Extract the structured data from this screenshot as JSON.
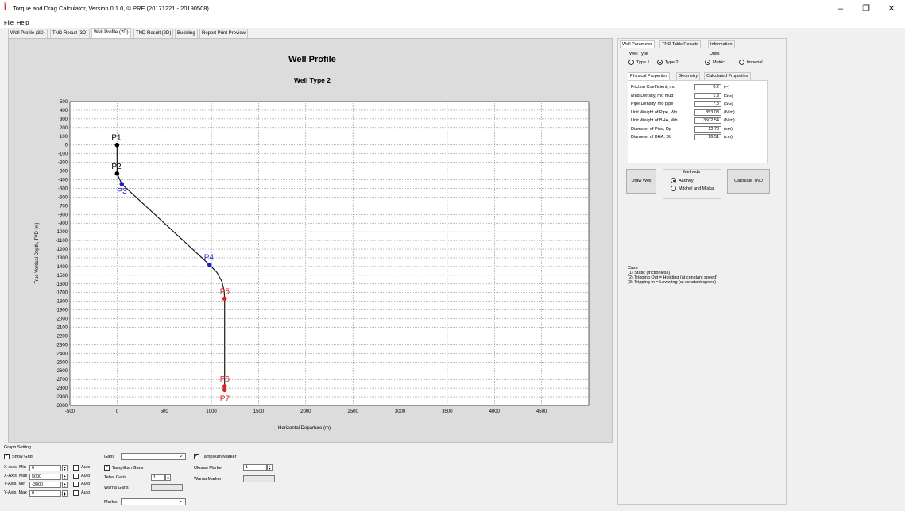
{
  "window": {
    "title": "Torque and Drag Calculator, Version 0.1.0, © PRE (20171221 - 20190508)",
    "minimize": "–",
    "maximize": "❐",
    "close": "✕"
  },
  "menu": [
    "File",
    "Help"
  ],
  "tabs": [
    "Well Profile (3D)",
    "TND Result (3D)",
    "Well Profile (2D)",
    "TND Result (2D)",
    "Buckling",
    "Report Print Preview"
  ],
  "active_tab": "Well Profile (2D)",
  "chart_data": {
    "type": "line",
    "title": "Well Profile",
    "subtitle": "Well Type 2",
    "xlabel": "Horizontal Departure (m)",
    "ylabel": "True Vertical Depth, TVD (m)",
    "xlim": [
      -500,
      5000
    ],
    "ylim": [
      -3000,
      500
    ],
    "x_ticks": [
      -500,
      0,
      500,
      1000,
      1500,
      2000,
      2500,
      3000,
      3500,
      4000,
      4500
    ],
    "y_ticks": [
      500,
      400,
      300,
      200,
      100,
      0,
      -100,
      -200,
      -300,
      -400,
      -500,
      -600,
      -700,
      -800,
      -900,
      -1000,
      -1100,
      -1200,
      -1300,
      -1400,
      -1500,
      -1600,
      -1700,
      -1800,
      -1900,
      -2000,
      -2100,
      -2200,
      -2300,
      -2400,
      -2500,
      -2600,
      -2700,
      -2800,
      -2900,
      -3000
    ],
    "grid": true,
    "points": [
      {
        "name": "P1",
        "x": 0,
        "y": 0,
        "color": "#000000"
      },
      {
        "name": "P2",
        "x": 0,
        "y": -330,
        "color": "#000000"
      },
      {
        "name": "P3",
        "x": 50,
        "y": -450,
        "color": "#1f1fd1"
      },
      {
        "name": "P4",
        "x": 980,
        "y": -1380,
        "color": "#1f1fd1"
      },
      {
        "name": "P5",
        "x": 1140,
        "y": -1770,
        "color": "#e02020"
      },
      {
        "name": "P6",
        "x": 1140,
        "y": -2780,
        "color": "#e02020"
      },
      {
        "name": "P7",
        "x": 1140,
        "y": -2820,
        "color": "#e02020"
      }
    ],
    "path": [
      [
        0,
        0
      ],
      [
        0,
        -330
      ],
      [
        50,
        -450
      ],
      [
        980,
        -1380
      ],
      [
        1060,
        -1470
      ],
      [
        1110,
        -1570
      ],
      [
        1135,
        -1680
      ],
      [
        1140,
        -1770
      ],
      [
        1140,
        -2820
      ]
    ]
  },
  "right": {
    "tabs": [
      "Well Parameter",
      "TND Table Results",
      "Information"
    ],
    "well_type_label": "Well Type",
    "type1": "Type 1",
    "type2": "Type 2",
    "units_label": "Units",
    "metric": "Metric",
    "imperial": "Imperial",
    "subtabs": [
      "Physical Properties",
      "Geometry",
      "Calculated Properties"
    ],
    "props": [
      {
        "label": "Friction Coefficient, mu",
        "value": "0.2",
        "unit": "(--)"
      },
      {
        "label": "Mud Density, rho mud",
        "value": "1.3",
        "unit": "(SG)"
      },
      {
        "label": "Pipe Density, rho pipe",
        "value": "7.8",
        "unit": "(SG)"
      },
      {
        "label": "Unit Weight of Pipe, Wp",
        "value": "353.03",
        "unit": "(N/m)"
      },
      {
        "label": "Unit Weight of BHA, Wb",
        "value": "3502.54",
        "unit": "(N/m)"
      },
      {
        "label": "Diameter of Pipe, Dp",
        "value": "12.70",
        "unit": "(cm)"
      },
      {
        "label": "Diameter of BHA, Db",
        "value": "16.51",
        "unit": "(cm)"
      }
    ],
    "draw_well": "Draw Well",
    "methods_label": "Methods",
    "method1": "Aadnoy",
    "method2": "Mitchel and Miska",
    "calculate": "Calculate TND",
    "case_lines": [
      "Case",
      "(1) Static (frictionless)",
      "(2) Tripping Out = Hoisting (at constant speed)",
      "(3) Tripping In = Lowering (at constant speed)"
    ]
  },
  "graph_setting": {
    "title": "Graph Setting",
    "show_grid": "Show Grid",
    "rows": [
      {
        "label": "X-Axis, Min",
        "value": "0"
      },
      {
        "label": "X-Axis, Max",
        "value": "5000"
      },
      {
        "label": "Y-Axis, Min",
        "value": "-3000"
      },
      {
        "label": "Y-Axis, Max",
        "value": "0"
      }
    ],
    "auto": "Auto",
    "garis": "Garis",
    "tampilkan_garis": "Tampilkan Garis",
    "tebal_garis": "Tebal Garis",
    "tebal_value": "1",
    "warna_garis": "Warna Garis",
    "marker": "Marker",
    "tampilkan_marker": "Tampilkan Marker",
    "ukuran_marker": "Ukuran Marker",
    "ukuran_value": "1",
    "warna_marker": "Warna Marker"
  }
}
